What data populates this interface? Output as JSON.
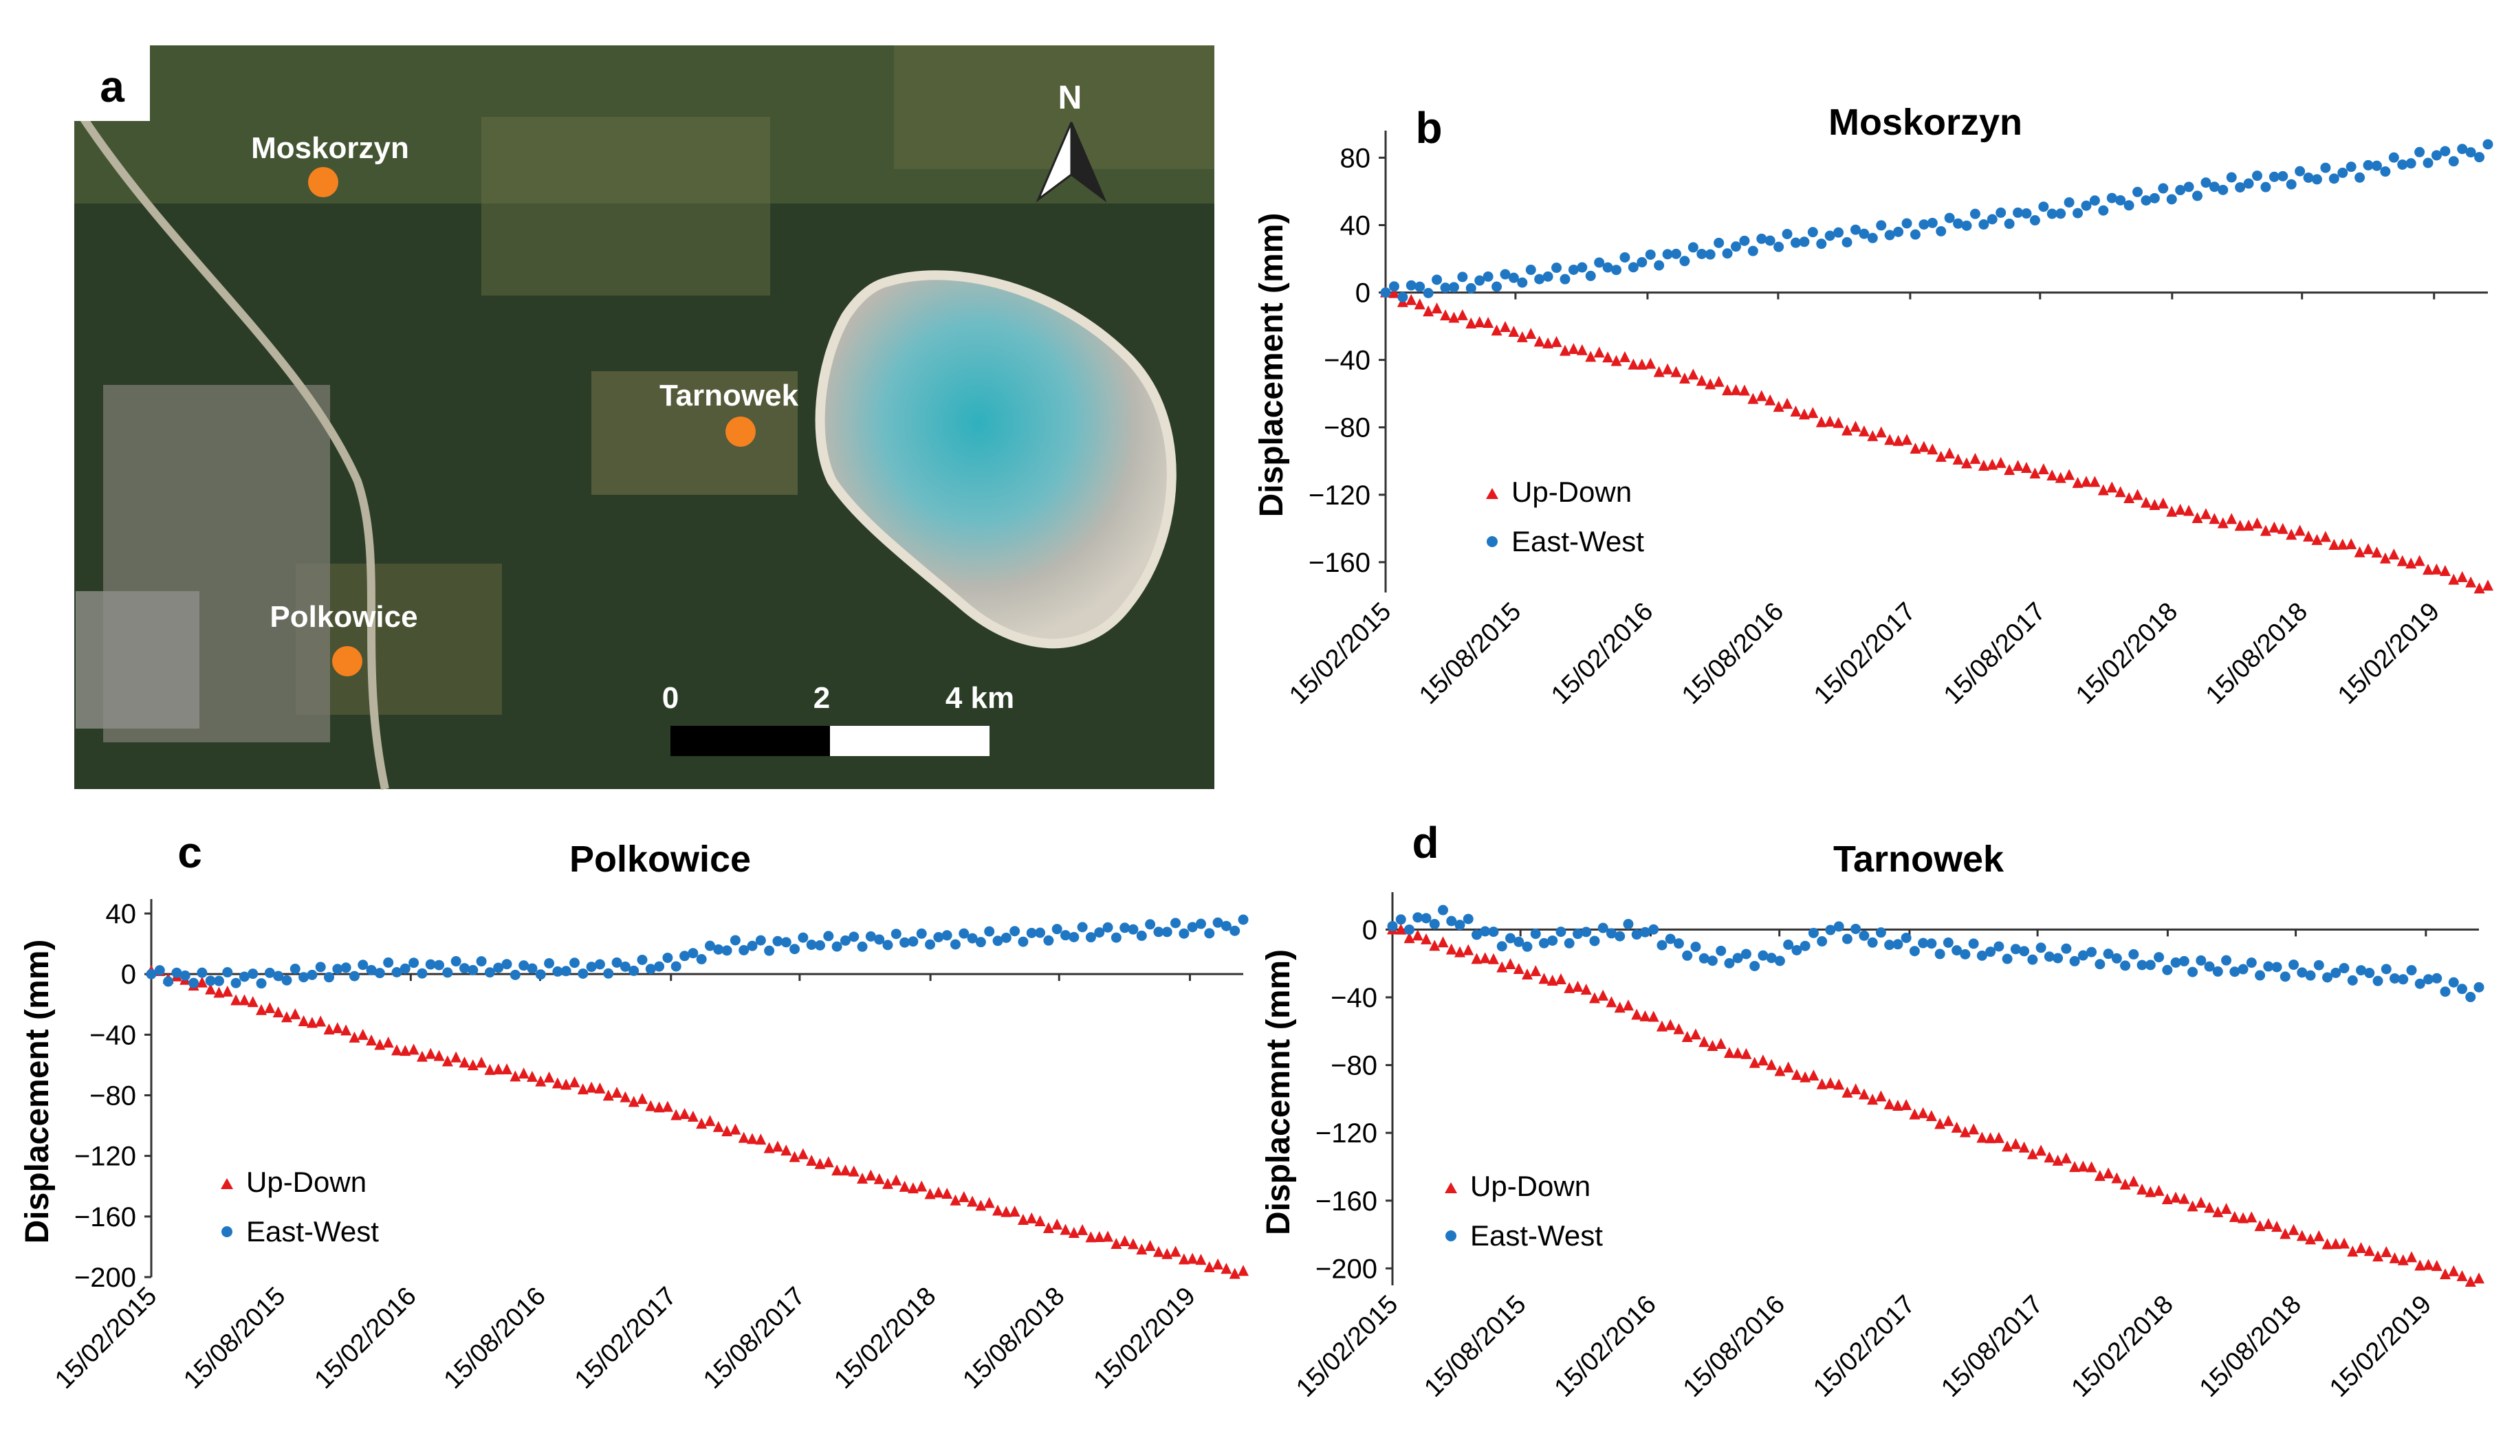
{
  "map": {
    "panel_label": "a",
    "north_label": "N",
    "places": [
      {
        "name": "Moskorzyn"
      },
      {
        "name": "Tarnowek"
      },
      {
        "name": "Polkowice"
      }
    ],
    "scale_labels": [
      "0",
      "2",
      "4 km"
    ],
    "colors": {
      "marker": "#f5811f",
      "forest": "#2b3d26",
      "pond": "#2aa6b3"
    }
  },
  "legend": {
    "up_down": "Up-Down",
    "east_west": "East-West"
  },
  "colors": {
    "up_down": "#e41a1c",
    "east_west": "#1f77c4"
  },
  "chart_data": [
    {
      "panel_label": "b",
      "type": "scatter",
      "title": "Moskorzyn",
      "ylabel": "Displacement (mm)",
      "xlabel": "",
      "x_ticks": [
        "15/02/2015",
        "15/08/2015",
        "15/02/2016",
        "15/08/2016",
        "15/02/2017",
        "15/08/2017",
        "15/02/2018",
        "15/08/2018",
        "15/02/2019"
      ],
      "x_range": [
        "2015-02-15",
        "2019-05-01"
      ],
      "y_ticks": [
        80,
        40,
        0,
        -40,
        -80,
        -120,
        -160
      ],
      "ylim": [
        -178,
        92
      ],
      "legend_position": "lower-left",
      "grid": false,
      "series": [
        {
          "name": "Up-Down",
          "marker": "triangle",
          "points": [
            [
              "2015-02-15",
              0
            ],
            [
              "2015-05-01",
              -12
            ],
            [
              "2015-08-01",
              -22
            ],
            [
              "2015-11-01",
              -34
            ],
            [
              "2016-02-01",
              -42
            ],
            [
              "2016-05-01",
              -52
            ],
            [
              "2016-08-01",
              -64
            ],
            [
              "2016-11-01",
              -78
            ],
            [
              "2017-02-01",
              -88
            ],
            [
              "2017-05-01",
              -100
            ],
            [
              "2017-08-01",
              -105
            ],
            [
              "2017-11-01",
              -114
            ],
            [
              "2018-02-01",
              -127
            ],
            [
              "2018-05-01",
              -136
            ],
            [
              "2018-08-01",
              -142
            ],
            [
              "2018-11-01",
              -152
            ],
            [
              "2019-02-01",
              -162
            ],
            [
              "2019-05-01",
              -176
            ]
          ]
        },
        {
          "name": "East-West",
          "marker": "circle",
          "points": [
            [
              "2015-02-15",
              0
            ],
            [
              "2015-05-01",
              4
            ],
            [
              "2015-08-01",
              8
            ],
            [
              "2015-11-01",
              12
            ],
            [
              "2016-02-01",
              18
            ],
            [
              "2016-05-01",
              24
            ],
            [
              "2016-08-01",
              30
            ],
            [
              "2016-11-01",
              33
            ],
            [
              "2017-02-01",
              37
            ],
            [
              "2017-05-01",
              42
            ],
            [
              "2017-08-01",
              46
            ],
            [
              "2017-11-01",
              52
            ],
            [
              "2018-02-01",
              58
            ],
            [
              "2018-05-01",
              64
            ],
            [
              "2018-08-01",
              68
            ],
            [
              "2018-11-01",
              72
            ],
            [
              "2019-02-01",
              80
            ],
            [
              "2019-05-01",
              84
            ]
          ]
        }
      ]
    },
    {
      "panel_label": "c",
      "type": "scatter",
      "title": "Polkowice",
      "ylabel": "Displacement (mm)",
      "xlabel": "",
      "x_ticks": [
        "15/02/2015",
        "15/08/2015",
        "15/02/2016",
        "15/08/2016",
        "15/02/2017",
        "15/08/2017",
        "15/02/2018",
        "15/08/2018",
        "15/02/2019"
      ],
      "x_range": [
        "2015-02-15",
        "2019-05-01"
      ],
      "y_ticks": [
        40,
        0,
        -40,
        -80,
        -120,
        -160,
        -200
      ],
      "ylim": [
        -200,
        45
      ],
      "legend_position": "lower-left",
      "grid": false,
      "series": [
        {
          "name": "Up-Down",
          "marker": "triangle",
          "points": [
            [
              "2015-02-15",
              2
            ],
            [
              "2015-05-01",
              -8
            ],
            [
              "2015-08-01",
              -24
            ],
            [
              "2015-11-01",
              -36
            ],
            [
              "2016-02-01",
              -50
            ],
            [
              "2016-05-01",
              -58
            ],
            [
              "2016-08-01",
              -68
            ],
            [
              "2016-11-01",
              -76
            ],
            [
              "2017-02-01",
              -88
            ],
            [
              "2017-05-01",
              -102
            ],
            [
              "2017-08-01",
              -118
            ],
            [
              "2017-11-01",
              -132
            ],
            [
              "2018-02-01",
              -142
            ],
            [
              "2018-05-01",
              -152
            ],
            [
              "2018-08-01",
              -166
            ],
            [
              "2018-11-01",
              -176
            ],
            [
              "2019-02-01",
              -186
            ],
            [
              "2019-05-01",
              -198
            ]
          ]
        },
        {
          "name": "East-West",
          "marker": "circle",
          "points": [
            [
              "2015-02-15",
              0
            ],
            [
              "2015-05-01",
              -3
            ],
            [
              "2015-08-01",
              -2
            ],
            [
              "2015-11-01",
              2
            ],
            [
              "2016-02-01",
              4
            ],
            [
              "2016-05-01",
              5
            ],
            [
              "2016-08-01",
              3
            ],
            [
              "2016-11-01",
              4
            ],
            [
              "2017-02-01",
              6
            ],
            [
              "2017-05-01",
              18
            ],
            [
              "2017-08-01",
              20
            ],
            [
              "2017-11-01",
              22
            ],
            [
              "2018-02-01",
              23
            ],
            [
              "2018-05-01",
              24
            ],
            [
              "2018-08-01",
              26
            ],
            [
              "2018-11-01",
              28
            ],
            [
              "2019-02-01",
              30
            ],
            [
              "2019-05-01",
              32
            ]
          ]
        }
      ]
    },
    {
      "panel_label": "d",
      "type": "scatter",
      "title": "Tarnowek",
      "ylabel": "Displacemnt (mm)",
      "xlabel": "",
      "x_ticks": [
        "15/02/2015",
        "15/08/2015",
        "15/02/2016",
        "15/08/2016",
        "15/02/2017",
        "15/08/2017",
        "15/02/2018",
        "15/08/2018",
        "15/02/2019"
      ],
      "x_range": [
        "2015-02-15",
        "2019-05-01"
      ],
      "y_ticks": [
        0,
        -40,
        -80,
        -120,
        -160,
        -200
      ],
      "ylim": [
        -210,
        18
      ],
      "legend_position": "lower-left",
      "grid": false,
      "series": [
        {
          "name": "Up-Down",
          "marker": "triangle",
          "points": [
            [
              "2015-02-15",
              0
            ],
            [
              "2015-05-01",
              -10
            ],
            [
              "2015-08-01",
              -22
            ],
            [
              "2015-11-01",
              -34
            ],
            [
              "2016-02-01",
              -50
            ],
            [
              "2016-05-01",
              -66
            ],
            [
              "2016-08-01",
              -80
            ],
            [
              "2016-11-01",
              -92
            ],
            [
              "2017-02-01",
              -104
            ],
            [
              "2017-05-01",
              -118
            ],
            [
              "2017-08-01",
              -130
            ],
            [
              "2017-11-01",
              -142
            ],
            [
              "2018-02-01",
              -156
            ],
            [
              "2018-05-01",
              -166
            ],
            [
              "2018-08-01",
              -178
            ],
            [
              "2018-11-01",
              -188
            ],
            [
              "2019-02-01",
              -196
            ],
            [
              "2019-05-01",
              -208
            ]
          ]
        },
        {
          "name": "East-West",
          "marker": "circle",
          "points": [
            [
              "2015-02-15",
              2
            ],
            [
              "2015-05-01",
              8
            ],
            [
              "2015-08-01",
              -8
            ],
            [
              "2015-11-01",
              -4
            ],
            [
              "2016-02-01",
              0
            ],
            [
              "2016-05-01",
              -16
            ],
            [
              "2016-08-01",
              -18
            ],
            [
              "2016-11-01",
              0
            ],
            [
              "2017-02-01",
              -8
            ],
            [
              "2017-05-01",
              -12
            ],
            [
              "2017-08-01",
              -14
            ],
            [
              "2017-11-01",
              -16
            ],
            [
              "2018-02-01",
              -20
            ],
            [
              "2018-05-01",
              -22
            ],
            [
              "2018-08-01",
              -24
            ],
            [
              "2018-11-01",
              -26
            ],
            [
              "2019-02-01",
              -28
            ],
            [
              "2019-05-01",
              -38
            ]
          ]
        }
      ]
    }
  ]
}
